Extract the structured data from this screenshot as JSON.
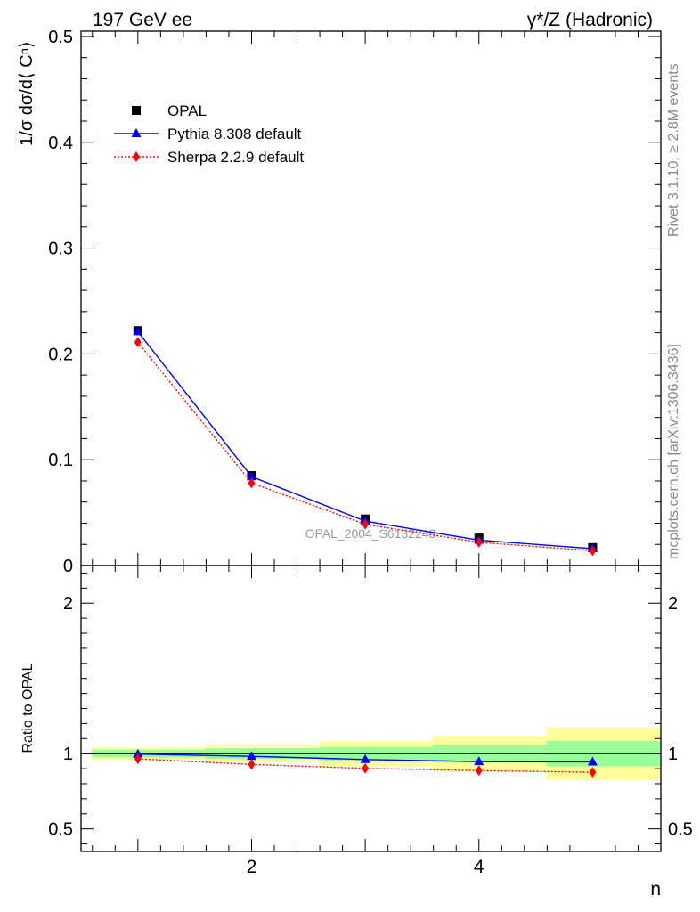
{
  "header": {
    "left": "197 GeV ee",
    "right": "γ*/Z (Hadronic)"
  },
  "side_text": {
    "rivet": "Rivet 3.1.10, ≥ 2.8M events",
    "mcplots": "mcplots.cern.ch [arXiv:1306.3436]"
  },
  "watermark": "OPAL_2004_S6132243",
  "chart_data": [
    {
      "type": "line",
      "panel": "main",
      "ylabel": "1/σ dσ/d⟨ Cⁿ⟩",
      "xlabel": "n",
      "xlim": [
        0.5,
        5.6
      ],
      "ylim": [
        0,
        0.505
      ],
      "yticks": [
        0,
        0.1,
        0.2,
        0.3,
        0.4,
        0.5
      ],
      "ytick_labels": [
        "0",
        "0.1",
        "0.2",
        "0.3",
        "0.4",
        "0.5"
      ],
      "legend_position": "top-left",
      "x": [
        1,
        2,
        3,
        4,
        5
      ],
      "series": [
        {
          "name": "OPAL",
          "values": [
            0.222,
            0.085,
            0.044,
            0.026,
            0.017
          ],
          "color": "#000000",
          "marker": "square"
        },
        {
          "name": "Pythia 8.308 default",
          "values": [
            0.221,
            0.084,
            0.042,
            0.024,
            0.016
          ],
          "color": "#0000ff",
          "marker": "triangle"
        },
        {
          "name": "Sherpa 2.2.9 default",
          "values": [
            0.211,
            0.078,
            0.039,
            0.022,
            0.014
          ],
          "color": "#ff0000",
          "marker": "diamond"
        }
      ]
    },
    {
      "type": "line",
      "panel": "ratio",
      "ylabel": "Ratio to OPAL",
      "xlabel": "n",
      "xlim": [
        0.5,
        5.6
      ],
      "ylim": [
        0.35,
        2.25
      ],
      "yticks": [
        0.5,
        1,
        2
      ],
      "ytick_labels": [
        "0.5",
        "1",
        "2"
      ],
      "xticks": [
        2,
        4
      ],
      "xtick_labels": [
        "2",
        "4"
      ],
      "x": [
        1,
        2,
        3,
        4,
        5
      ],
      "bands": {
        "bins": [
          [
            0.5,
            1.5
          ],
          [
            1.5,
            2.5
          ],
          [
            2.5,
            3.5
          ],
          [
            3.5,
            4.5
          ],
          [
            4.5,
            5.5
          ]
        ],
        "stat_low": [
          0.975,
          0.965,
          0.955,
          0.94,
          0.915
        ],
        "stat_high": [
          1.025,
          1.035,
          1.045,
          1.06,
          1.085
        ],
        "total_low": [
          0.96,
          0.94,
          0.915,
          0.88,
          0.825
        ],
        "total_high": [
          1.04,
          1.06,
          1.085,
          1.12,
          1.175
        ]
      },
      "series": [
        {
          "name": "Pythia 8.308 default",
          "values": [
            0.997,
            0.982,
            0.961,
            0.947,
            0.945
          ],
          "color": "#0000ff",
          "marker": "triangle"
        },
        {
          "name": "Sherpa 2.2.9 default",
          "values": [
            0.965,
            0.928,
            0.902,
            0.887,
            0.876
          ],
          "color": "#ff0000",
          "marker": "diamond"
        }
      ]
    }
  ]
}
